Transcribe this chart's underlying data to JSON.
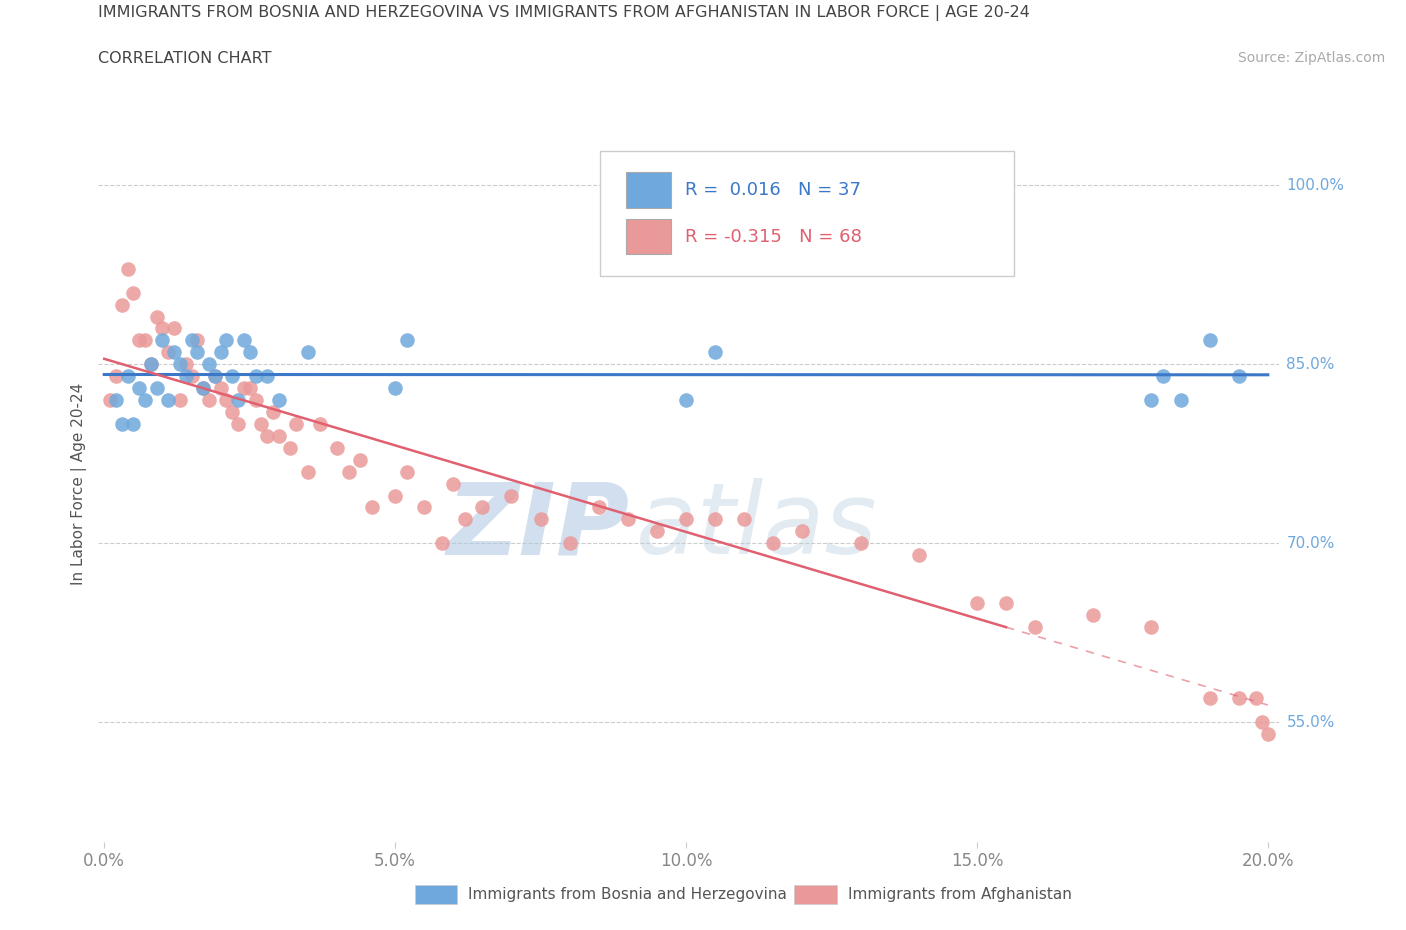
{
  "title_line1": "IMMIGRANTS FROM BOSNIA AND HERZEGOVINA VS IMMIGRANTS FROM AFGHANISTAN IN LABOR FORCE | AGE 20-24",
  "title_line2": "CORRELATION CHART",
  "source_text": "Source: ZipAtlas.com",
  "ylabel": "In Labor Force | Age 20-24",
  "xlim": [
    -0.001,
    0.202
  ],
  "ylim": [
    0.45,
    1.05
  ],
  "ytick_labels": [
    "55.0%",
    "70.0%",
    "85.0%",
    "100.0%"
  ],
  "ytick_values": [
    0.55,
    0.7,
    0.85,
    1.0
  ],
  "xtick_labels": [
    "0.0%",
    "5.0%",
    "10.0%",
    "15.0%",
    "20.0%"
  ],
  "xtick_values": [
    0.0,
    0.05,
    0.1,
    0.15,
    0.2
  ],
  "color_bosnia": "#6fa8dc",
  "color_afghanistan": "#ea9999",
  "trendline_color_bosnia": "#3c78c8",
  "trendline_color_afghanistan": "#e06070",
  "legend_label_bosnia": "Immigrants from Bosnia and Herzegovina",
  "legend_label_afghanistan": "Immigrants from Afghanistan",
  "R_bosnia": 0.016,
  "N_bosnia": 37,
  "R_afghanistan": -0.315,
  "N_afghanistan": 68,
  "watermark_zip": "ZIP",
  "watermark_atlas": "atlas",
  "background_color": "#ffffff",
  "bosnia_x": [
    0.002,
    0.003,
    0.004,
    0.005,
    0.006,
    0.007,
    0.008,
    0.009,
    0.01,
    0.011,
    0.012,
    0.013,
    0.014,
    0.015,
    0.016,
    0.017,
    0.018,
    0.019,
    0.02,
    0.021,
    0.022,
    0.023,
    0.024,
    0.025,
    0.026,
    0.028,
    0.03,
    0.035,
    0.05,
    0.052,
    0.1,
    0.105,
    0.18,
    0.182,
    0.185,
    0.19,
    0.195
  ],
  "bosnia_y": [
    0.82,
    0.8,
    0.84,
    0.8,
    0.83,
    0.82,
    0.85,
    0.83,
    0.87,
    0.82,
    0.86,
    0.85,
    0.84,
    0.87,
    0.86,
    0.83,
    0.85,
    0.84,
    0.86,
    0.87,
    0.84,
    0.82,
    0.87,
    0.86,
    0.84,
    0.84,
    0.82,
    0.86,
    0.83,
    0.87,
    0.82,
    0.86,
    0.82,
    0.84,
    0.82,
    0.87,
    0.84
  ],
  "afghanistan_x": [
    0.001,
    0.002,
    0.003,
    0.004,
    0.005,
    0.006,
    0.007,
    0.008,
    0.009,
    0.01,
    0.011,
    0.012,
    0.013,
    0.014,
    0.015,
    0.016,
    0.017,
    0.018,
    0.019,
    0.02,
    0.021,
    0.022,
    0.023,
    0.024,
    0.025,
    0.026,
    0.027,
    0.028,
    0.029,
    0.03,
    0.032,
    0.033,
    0.035,
    0.037,
    0.04,
    0.042,
    0.044,
    0.046,
    0.05,
    0.052,
    0.055,
    0.058,
    0.06,
    0.062,
    0.065,
    0.07,
    0.075,
    0.08,
    0.085,
    0.09,
    0.095,
    0.1,
    0.105,
    0.11,
    0.115,
    0.12,
    0.13,
    0.14,
    0.15,
    0.155,
    0.16,
    0.17,
    0.18,
    0.19,
    0.195,
    0.198,
    0.199,
    0.2
  ],
  "afghanistan_y": [
    0.82,
    0.84,
    0.9,
    0.93,
    0.91,
    0.87,
    0.87,
    0.85,
    0.89,
    0.88,
    0.86,
    0.88,
    0.82,
    0.85,
    0.84,
    0.87,
    0.83,
    0.82,
    0.84,
    0.83,
    0.82,
    0.81,
    0.8,
    0.83,
    0.83,
    0.82,
    0.8,
    0.79,
    0.81,
    0.79,
    0.78,
    0.8,
    0.76,
    0.8,
    0.78,
    0.76,
    0.77,
    0.73,
    0.74,
    0.76,
    0.73,
    0.7,
    0.75,
    0.72,
    0.73,
    0.74,
    0.72,
    0.7,
    0.73,
    0.72,
    0.71,
    0.72,
    0.72,
    0.72,
    0.7,
    0.71,
    0.7,
    0.69,
    0.65,
    0.65,
    0.63,
    0.64,
    0.63,
    0.57,
    0.57,
    0.57,
    0.55,
    0.54
  ],
  "trendline_extends_dashed": true,
  "trendline_solid_end_x": 0.155
}
